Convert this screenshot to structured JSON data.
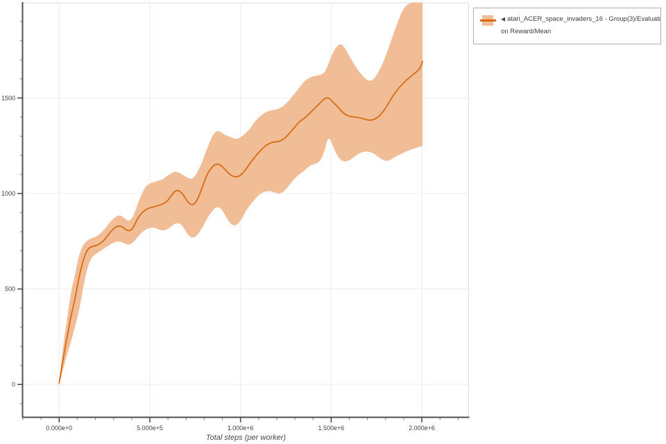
{
  "page": {
    "background": "#ffffff"
  },
  "legend": {
    "marker": "◀",
    "lines": [
      "atari_ACER_space_invaders_16 - Group(3)/Evaluati",
      "on Reward/Mean"
    ],
    "full_label": "atari_ACER_space_invaders_16 - Group(3)/Evaluation Reward/Mean"
  },
  "chart_data": {
    "type": "line",
    "title": "",
    "xlabel": "Total steps (per worker)",
    "ylabel": "",
    "xlim": [
      -200000,
      2260000
    ],
    "ylim": [
      -170,
      1995
    ],
    "grid": true,
    "legend_position": "top-right",
    "colors": {
      "line": "#d96a10",
      "band": "#f0bd97",
      "grid": "#ececec",
      "frame": "#dddddd",
      "spine": "#4f4f4f",
      "tick_major": "#444444",
      "tick_minor": "#777777",
      "tick_label": "#3d3d3d",
      "axis_label": "#4a4a4a"
    },
    "x_ticks": [
      {
        "value": 0,
        "label": "0.000e+0"
      },
      {
        "value": 500000,
        "label": "5.000e+5"
      },
      {
        "value": 1000000,
        "label": "1.000e+6"
      },
      {
        "value": 1500000,
        "label": "1.500e+6"
      },
      {
        "value": 2000000,
        "label": "2.000e+6"
      }
    ],
    "y_ticks": [
      {
        "value": 0,
        "label": "0"
      },
      {
        "value": 500,
        "label": "500"
      },
      {
        "value": 1000,
        "label": "1000"
      },
      {
        "value": 1500,
        "label": "1500"
      }
    ],
    "x_minor": {
      "from": -200000,
      "to": 2200000,
      "step": 100000
    },
    "y_minor": {
      "from": -100,
      "to": 1900,
      "step": 100
    },
    "series": [
      {
        "name": "atari_ACER_space_invaders_16 - Group(3)/Evaluation Reward/Mean",
        "steps": [
          0,
          19000,
          42000,
          65000,
          88000,
          111000,
          134000,
          156000,
          179000,
          202000,
          225000,
          248000,
          271000,
          294000,
          317000,
          340000,
          363000,
          386000,
          409000,
          431000,
          454000,
          477000,
          500000,
          523000,
          546000,
          569000,
          592000,
          615000,
          637000,
          660000,
          683000,
          706000,
          729000,
          752000,
          775000,
          798000,
          821000,
          844000,
          866000,
          889000,
          912000,
          935000,
          958000,
          981000,
          1004000,
          1027000,
          1050000,
          1073000,
          1095000,
          1118000,
          1141000,
          1164000,
          1187000,
          1210000,
          1233000,
          1256000,
          1279000,
          1302000,
          1324000,
          1347000,
          1370000,
          1393000,
          1416000,
          1439000,
          1462000,
          1485000,
          1508000,
          1531000,
          1554000,
          1577000,
          1600000,
          1622000,
          1645000,
          1668000,
          1691000,
          1714000,
          1737000,
          1760000,
          1783000,
          1806000,
          1828000,
          1851000,
          1874000,
          1897000,
          1920000,
          1943000,
          1966000,
          1989000,
          2004000
        ],
        "mean": [
          7,
          116,
          240,
          359,
          450,
          570,
          657,
          708,
          723,
          726,
          737,
          755,
          784,
          810,
          828,
          831,
          813,
          802,
          820,
          868,
          897,
          915,
          926,
          930,
          937,
          944,
          955,
          984,
          1013,
          1017,
          995,
          959,
          939,
          948,
          995,
          1057,
          1111,
          1140,
          1155,
          1151,
          1129,
          1104,
          1089,
          1086,
          1097,
          1122,
          1155,
          1184,
          1209,
          1233,
          1253,
          1264,
          1271,
          1271,
          1282,
          1300,
          1325,
          1351,
          1376,
          1390,
          1409,
          1431,
          1452,
          1474,
          1496,
          1503,
          1481,
          1459,
          1434,
          1413,
          1405,
          1401,
          1398,
          1394,
          1387,
          1383,
          1387,
          1401,
          1423,
          1456,
          1492,
          1525,
          1554,
          1576,
          1598,
          1616,
          1634,
          1652,
          1692
        ],
        "lower": [
          0,
          69,
          153,
          225,
          305,
          389,
          516,
          614,
          668,
          683,
          697,
          712,
          726,
          741,
          748,
          748,
          737,
          730,
          744,
          770,
          795,
          810,
          820,
          822,
          813,
          806,
          810,
          824,
          842,
          846,
          828,
          788,
          768,
          772,
          799,
          835,
          879,
          908,
          930,
          926,
          893,
          853,
          831,
          835,
          861,
          904,
          937,
          962,
          987,
          1004,
          1011,
          1013,
          1006,
          998,
          1006,
          1027,
          1057,
          1082,
          1100,
          1115,
          1136,
          1151,
          1155,
          1169,
          1216,
          1303,
          1253,
          1202,
          1173,
          1166,
          1173,
          1187,
          1205,
          1216,
          1220,
          1218,
          1209,
          1191,
          1176,
          1169,
          1176,
          1191,
          1202,
          1212,
          1223,
          1231,
          1238,
          1245,
          1249
        ],
        "upper": [
          15,
          178,
          334,
          487,
          577,
          686,
          733,
          755,
          766,
          773,
          788,
          810,
          839,
          864,
          882,
          886,
          868,
          853,
          879,
          940,
          995,
          1038,
          1053,
          1060,
          1067,
          1072,
          1089,
          1104,
          1115,
          1111,
          1097,
          1082,
          1075,
          1093,
          1133,
          1191,
          1249,
          1300,
          1329,
          1325,
          1307,
          1300,
          1289,
          1285,
          1296,
          1314,
          1336,
          1369,
          1394,
          1412,
          1427,
          1434,
          1438,
          1442,
          1456,
          1474,
          1500,
          1528,
          1554,
          1583,
          1601,
          1612,
          1616,
          1621,
          1630,
          1677,
          1736,
          1772,
          1786,
          1761,
          1721,
          1685,
          1648,
          1623,
          1598,
          1587,
          1601,
          1634,
          1677,
          1732,
          1794,
          1855,
          1917,
          1964,
          1990,
          2000,
          2000,
          2000,
          2000
        ]
      }
    ]
  }
}
